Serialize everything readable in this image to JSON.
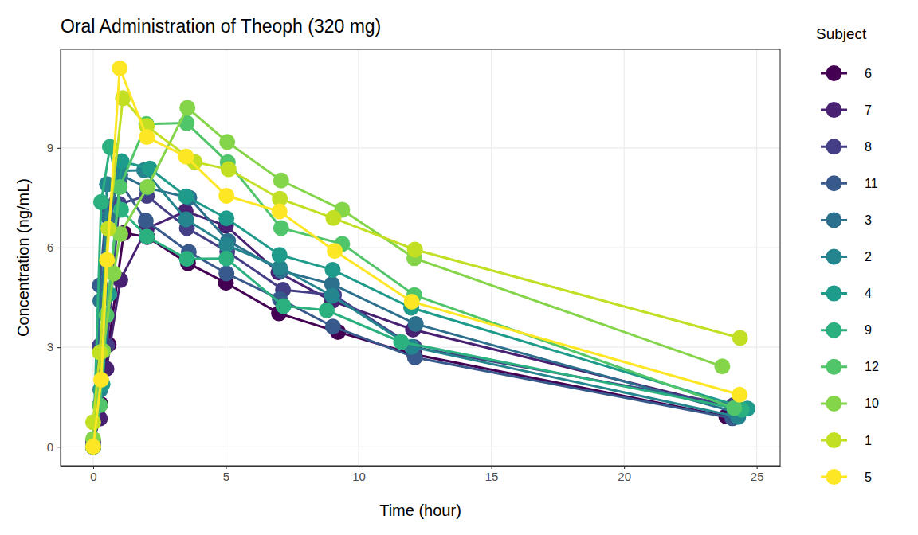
{
  "chart_data": {
    "type": "line",
    "title": "Oral Administration of Theoph (320 mg)",
    "x_label": "Time (hour)",
    "y_label": "Concentration (ng/mL)",
    "legend_title": "Subject",
    "legend": "right",
    "grid": true,
    "marker": "circle",
    "line_style": "solid",
    "xlim": [
      -1.23,
      25.88
    ],
    "xticks": [
      0,
      5,
      10,
      15,
      20,
      25
    ],
    "ylim": [
      -0.57,
      11.97
    ],
    "yticks": [
      0,
      3,
      6,
      9
    ],
    "series": [
      {
        "name": "6",
        "color": "#440154",
        "x": [
          0,
          0.27,
          0.58,
          1.15,
          2.03,
          3.57,
          5.0,
          7.0,
          9.22,
          12.1,
          23.85
        ],
        "values": [
          0,
          1.29,
          3.08,
          6.44,
          6.32,
          5.53,
          4.94,
          4.02,
          3.46,
          2.78,
          0.92
        ]
      },
      {
        "name": "7",
        "color": "#482173",
        "x": [
          0,
          0.25,
          0.5,
          1.02,
          2.02,
          3.48,
          5.0,
          6.98,
          9.0,
          12.05,
          24.22
        ],
        "values": [
          0.15,
          0.85,
          2.35,
          5.02,
          6.58,
          7.09,
          6.66,
          5.25,
          4.39,
          3.53,
          1.15
        ]
      },
      {
        "name": "8",
        "color": "#433E85",
        "x": [
          0,
          0.25,
          0.52,
          0.98,
          2.02,
          3.53,
          5.05,
          7.15,
          9.07,
          12.1,
          24.12
        ],
        "values": [
          0,
          3.05,
          3.05,
          7.31,
          7.56,
          6.59,
          5.88,
          4.73,
          4.57,
          3.0,
          1.25
        ]
      },
      {
        "name": "11",
        "color": "#38598C",
        "x": [
          0,
          0.25,
          0.5,
          0.98,
          1.98,
          3.6,
          5.02,
          7.03,
          9.03,
          12.12,
          24.08
        ],
        "values": [
          0,
          4.86,
          7.24,
          8.0,
          6.81,
          5.87,
          5.22,
          4.45,
          3.62,
          2.69,
          0.86
        ]
      },
      {
        "name": "3",
        "color": "#2D708E",
        "x": [
          0,
          0.27,
          0.58,
          1.02,
          2.02,
          3.62,
          5.08,
          7.07,
          9.0,
          12.15,
          24.17
        ],
        "values": [
          0,
          4.4,
          6.9,
          8.2,
          7.8,
          7.5,
          6.2,
          5.3,
          4.9,
          3.7,
          1.05
        ]
      },
      {
        "name": "2",
        "color": "#25858E",
        "x": [
          0,
          0.27,
          0.52,
          1.0,
          1.92,
          3.5,
          5.02,
          7.03,
          9.0,
          12.0,
          24.3
        ],
        "values": [
          0,
          1.72,
          7.91,
          8.31,
          8.33,
          6.85,
          6.08,
          5.4,
          4.55,
          3.01,
          0.9
        ]
      },
      {
        "name": "4",
        "color": "#1E9B8A",
        "x": [
          0,
          0.35,
          0.6,
          1.07,
          2.13,
          3.5,
          5.02,
          7.02,
          9.02,
          11.98,
          24.65
        ],
        "values": [
          0,
          1.89,
          4.6,
          8.6,
          8.38,
          7.54,
          6.88,
          5.78,
          5.33,
          4.19,
          1.15
        ]
      },
      {
        "name": "9",
        "color": "#2BB07F",
        "x": [
          0,
          0.3,
          0.63,
          1.05,
          2.02,
          3.53,
          5.02,
          7.17,
          8.8,
          11.6,
          24.43
        ],
        "values": [
          0,
          7.37,
          9.03,
          7.14,
          6.33,
          5.66,
          5.67,
          4.24,
          4.11,
          3.16,
          1.12
        ]
      },
      {
        "name": "12",
        "color": "#51C56A",
        "x": [
          0,
          0.25,
          0.5,
          1.0,
          2.0,
          3.52,
          5.07,
          7.08,
          9.38,
          12.1,
          24.15
        ],
        "values": [
          0,
          1.25,
          3.96,
          7.82,
          9.72,
          9.75,
          8.57,
          6.59,
          6.11,
          4.57,
          1.17
        ]
      },
      {
        "name": "10",
        "color": "#85D54A",
        "x": [
          0,
          0.37,
          0.77,
          1.02,
          2.05,
          3.55,
          5.05,
          7.08,
          9.38,
          12.1,
          23.7
        ],
        "values": [
          0.24,
          2.89,
          5.22,
          6.41,
          7.83,
          10.21,
          9.18,
          8.02,
          7.14,
          5.68,
          2.42
        ]
      },
      {
        "name": "1",
        "color": "#C2DF23",
        "x": [
          0,
          0.25,
          0.57,
          1.12,
          2.02,
          3.82,
          5.1,
          7.03,
          9.05,
          12.12,
          24.37
        ],
        "values": [
          0.74,
          2.84,
          6.57,
          10.5,
          9.66,
          8.58,
          8.36,
          7.47,
          6.89,
          5.94,
          3.28
        ]
      },
      {
        "name": "5",
        "color": "#FDE725",
        "x": [
          0,
          0.3,
          0.52,
          1.0,
          2.02,
          3.5,
          5.02,
          7.02,
          9.1,
          12.0,
          24.35
        ],
        "values": [
          0,
          2.02,
          5.63,
          11.4,
          9.33,
          8.74,
          7.56,
          7.09,
          5.9,
          4.37,
          1.57
        ]
      }
    ]
  }
}
